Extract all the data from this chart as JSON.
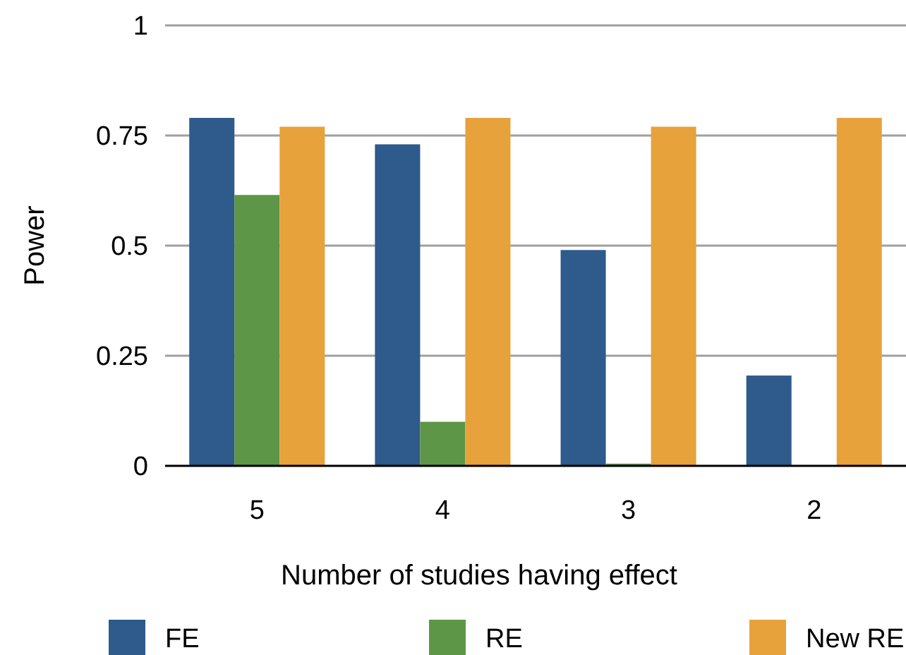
{
  "chart_data": {
    "type": "bar",
    "xlabel": "Number of studies having effect",
    "ylabel": "Power",
    "categories": [
      "5",
      "4",
      "3",
      "2"
    ],
    "series": [
      {
        "name": "FE",
        "color": "#2e5a8c",
        "values": [
          0.79,
          0.73,
          0.49,
          0.205
        ]
      },
      {
        "name": "RE",
        "color": "#5c9646",
        "values": [
          0.615,
          0.1,
          0.005,
          0
        ]
      },
      {
        "name": "New RE",
        "color": "#e7a23c",
        "values": [
          0.77,
          0.79,
          0.77,
          0.79
        ]
      }
    ],
    "ylim": [
      0,
      1
    ],
    "yticks": [
      0,
      {
        "value": 0.25,
        "label": "0.25"
      },
      {
        "value": 0.5,
        "label": "0.5"
      },
      {
        "value": 0.75,
        "label": "0.75"
      },
      1
    ],
    "grid": "y",
    "legend": "bottom"
  }
}
